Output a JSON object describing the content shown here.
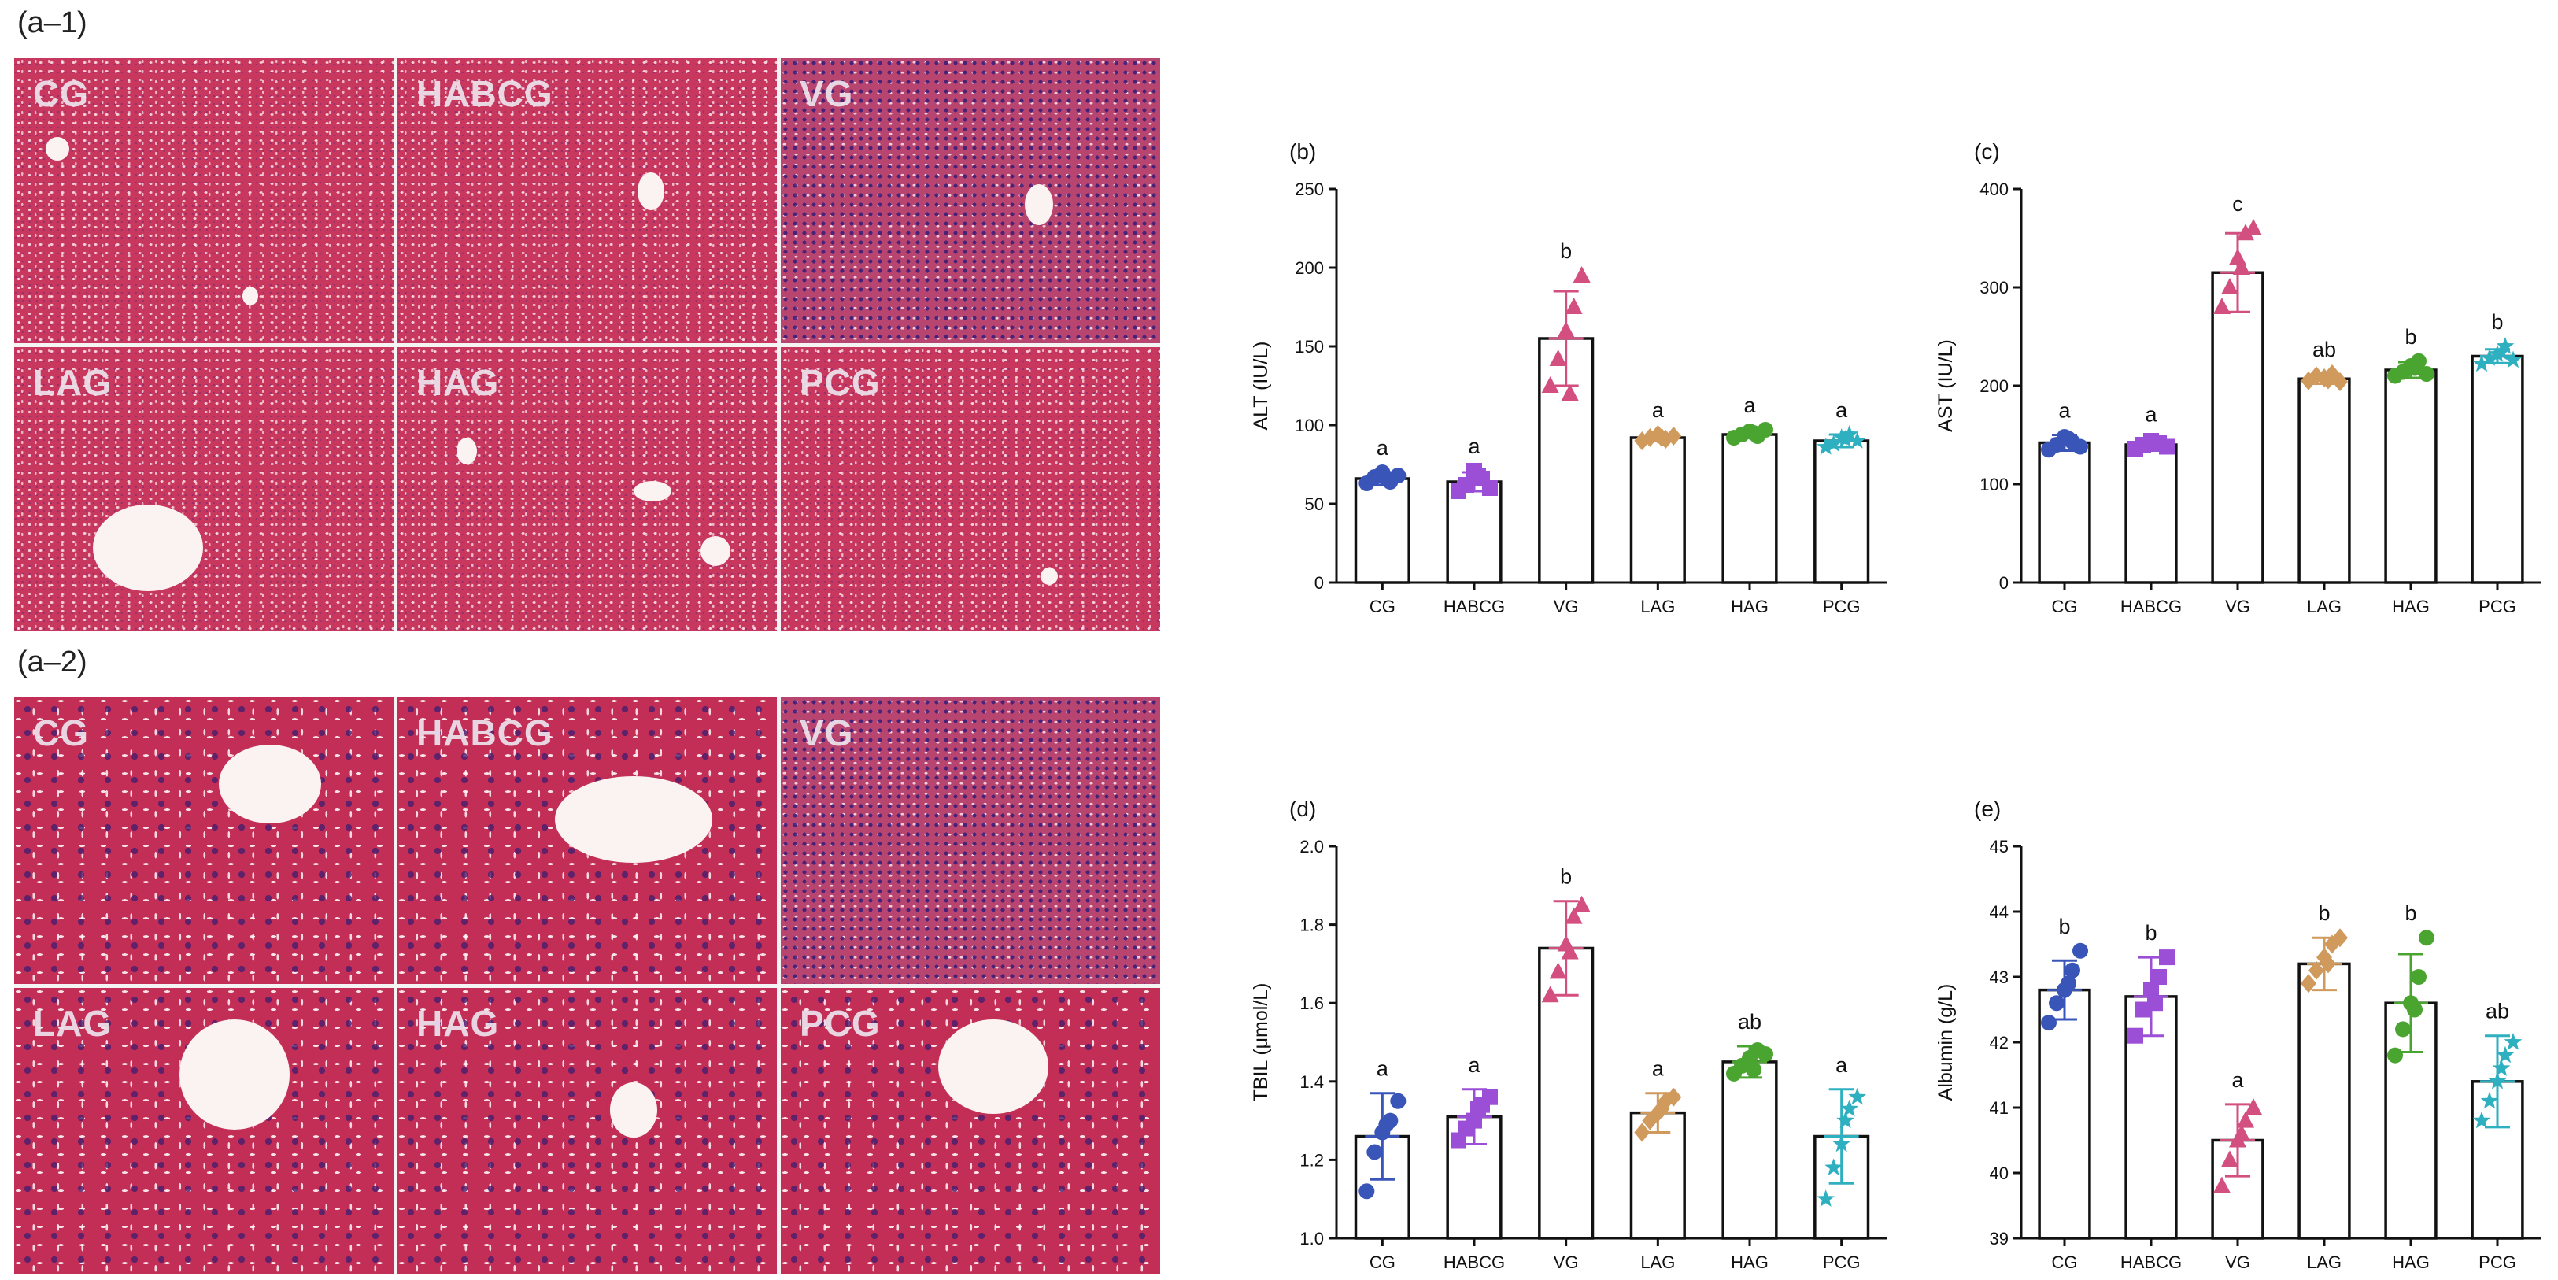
{
  "figure": {
    "label_a1": "(a–1)",
    "label_a2": "(a–2)",
    "micrographs_a1": [
      "CG",
      "HABCG",
      "VG",
      "LAG",
      "HAG",
      "PCG"
    ],
    "micrographs_a2": [
      "CG",
      "HABCG",
      "VG",
      "LAG",
      "HAG",
      "PCG"
    ]
  },
  "colors": {
    "CG": "#3a55b8",
    "HABCG": "#9b4fd6",
    "VG": "#d24f7f",
    "LAG": "#d09a5c",
    "HAG": "#4aa530",
    "PCG": "#2fb0c0",
    "tissue": "#c8385e"
  },
  "markers": {
    "CG": "circle",
    "HABCG": "square",
    "VG": "triangle",
    "LAG": "diamond",
    "HAG": "circle",
    "PCG": "star"
  },
  "chart_data": [
    {
      "type": "bar",
      "panel_label": "(b)",
      "title": "",
      "xlabel": "",
      "ylabel": "ALT (IU/L)",
      "ylim": [
        0,
        250
      ],
      "yticks": [
        0,
        50,
        100,
        150,
        200,
        250
      ],
      "ytick_labels": [
        "0",
        "50",
        "100",
        "150",
        "200",
        "250"
      ],
      "categories": [
        "CG",
        "HABCG",
        "VG",
        "LAG",
        "HAG",
        "PCG"
      ],
      "values": [
        66,
        64,
        155,
        92,
        94,
        90
      ],
      "errors": [
        4,
        6,
        30,
        2,
        2,
        4
      ],
      "points": [
        [
          63,
          67,
          70,
          64,
          68,
          66
        ],
        [
          58,
          62,
          71,
          66,
          60,
          68
        ],
        [
          125,
          142,
          160,
          175,
          195,
          120
        ],
        [
          90,
          92,
          94,
          91,
          93,
          92
        ],
        [
          92,
          94,
          96,
          93,
          97,
          95
        ],
        [
          86,
          88,
          92,
          94,
          90,
          91
        ]
      ],
      "group_letters": [
        "a",
        "a",
        "b",
        "a",
        "a",
        "a"
      ],
      "grid": false,
      "legend": "none"
    },
    {
      "type": "bar",
      "panel_label": "(c)",
      "title": "",
      "xlabel": "",
      "ylabel": "AST (IU/L)",
      "ylim": [
        0,
        400
      ],
      "yticks": [
        0,
        100,
        200,
        300,
        400
      ],
      "ytick_labels": [
        "0",
        "100",
        "200",
        "300",
        "400"
      ],
      "categories": [
        "CG",
        "HABCG",
        "VG",
        "LAG",
        "HAG",
        "PCG"
      ],
      "values": [
        142,
        140,
        315,
        207,
        216,
        230
      ],
      "errors": [
        8,
        6,
        40,
        5,
        8,
        7
      ],
      "points": [
        [
          135,
          140,
          148,
          143,
          138,
          146
        ],
        [
          136,
          140,
          144,
          142,
          138,
          141
        ],
        [
          280,
          300,
          330,
          355,
          360,
          320
        ],
        [
          205,
          210,
          208,
          212,
          204,
          206
        ],
        [
          210,
          214,
          220,
          225,
          212,
          218
        ],
        [
          222,
          228,
          232,
          240,
          226,
          234
        ]
      ],
      "group_letters": [
        "a",
        "a",
        "c",
        "ab",
        "b",
        "b"
      ],
      "grid": false,
      "legend": "none"
    },
    {
      "type": "bar",
      "panel_label": "(d)",
      "title": "",
      "xlabel": "",
      "ylabel": "TBIL (μmol/L)",
      "ylim": [
        1.0,
        2.0
      ],
      "yticks": [
        1.0,
        1.2,
        1.4,
        1.6,
        1.8,
        2.0
      ],
      "ytick_labels": [
        "1.0",
        "1.2",
        "1.4",
        "1.6",
        "1.8",
        "2.0"
      ],
      "categories": [
        "CG",
        "HABCG",
        "VG",
        "LAG",
        "HAG",
        "PCG"
      ],
      "values": [
        1.26,
        1.31,
        1.74,
        1.32,
        1.45,
        1.26
      ],
      "errors": [
        0.11,
        0.07,
        0.12,
        0.05,
        0.04,
        0.12
      ],
      "points": [
        [
          1.12,
          1.22,
          1.27,
          1.3,
          1.35,
          1.29
        ],
        [
          1.25,
          1.28,
          1.3,
          1.34,
          1.36,
          1.33
        ],
        [
          1.62,
          1.68,
          1.75,
          1.82,
          1.85,
          1.73
        ],
        [
          1.27,
          1.3,
          1.32,
          1.35,
          1.36,
          1.33
        ],
        [
          1.42,
          1.44,
          1.46,
          1.48,
          1.47,
          1.43
        ],
        [
          1.1,
          1.18,
          1.24,
          1.33,
          1.36,
          1.3
        ]
      ],
      "group_letters": [
        "a",
        "a",
        "b",
        "a",
        "ab",
        "a"
      ],
      "grid": false,
      "legend": "none"
    },
    {
      "type": "bar",
      "panel_label": "(e)",
      "title": "",
      "xlabel": "",
      "ylabel": "Albumin (g/L)",
      "ylim": [
        39,
        45
      ],
      "yticks": [
        39,
        40,
        41,
        42,
        43,
        44,
        45
      ],
      "ytick_labels": [
        "39",
        "40",
        "41",
        "42",
        "43",
        "44",
        "45"
      ],
      "categories": [
        "CG",
        "HABCG",
        "VG",
        "LAG",
        "HAG",
        "PCG"
      ],
      "values": [
        42.8,
        42.7,
        40.5,
        43.2,
        42.6,
        41.4
      ],
      "errors": [
        0.45,
        0.6,
        0.55,
        0.4,
        0.75,
        0.7
      ],
      "points": [
        [
          42.3,
          42.6,
          42.8,
          43.1,
          43.4,
          42.9
        ],
        [
          42.1,
          42.5,
          42.8,
          43.0,
          43.3,
          42.6
        ],
        [
          39.8,
          40.2,
          40.5,
          40.8,
          41.0,
          40.6
        ],
        [
          42.9,
          43.1,
          43.3,
          43.5,
          43.6,
          43.2
        ],
        [
          41.8,
          42.2,
          42.6,
          43.0,
          43.6,
          42.5
        ],
        [
          40.8,
          41.1,
          41.4,
          41.8,
          42.0,
          41.6
        ]
      ],
      "group_letters": [
        "b",
        "b",
        "a",
        "b",
        "b",
        "ab"
      ],
      "grid": false,
      "legend": "none"
    }
  ]
}
